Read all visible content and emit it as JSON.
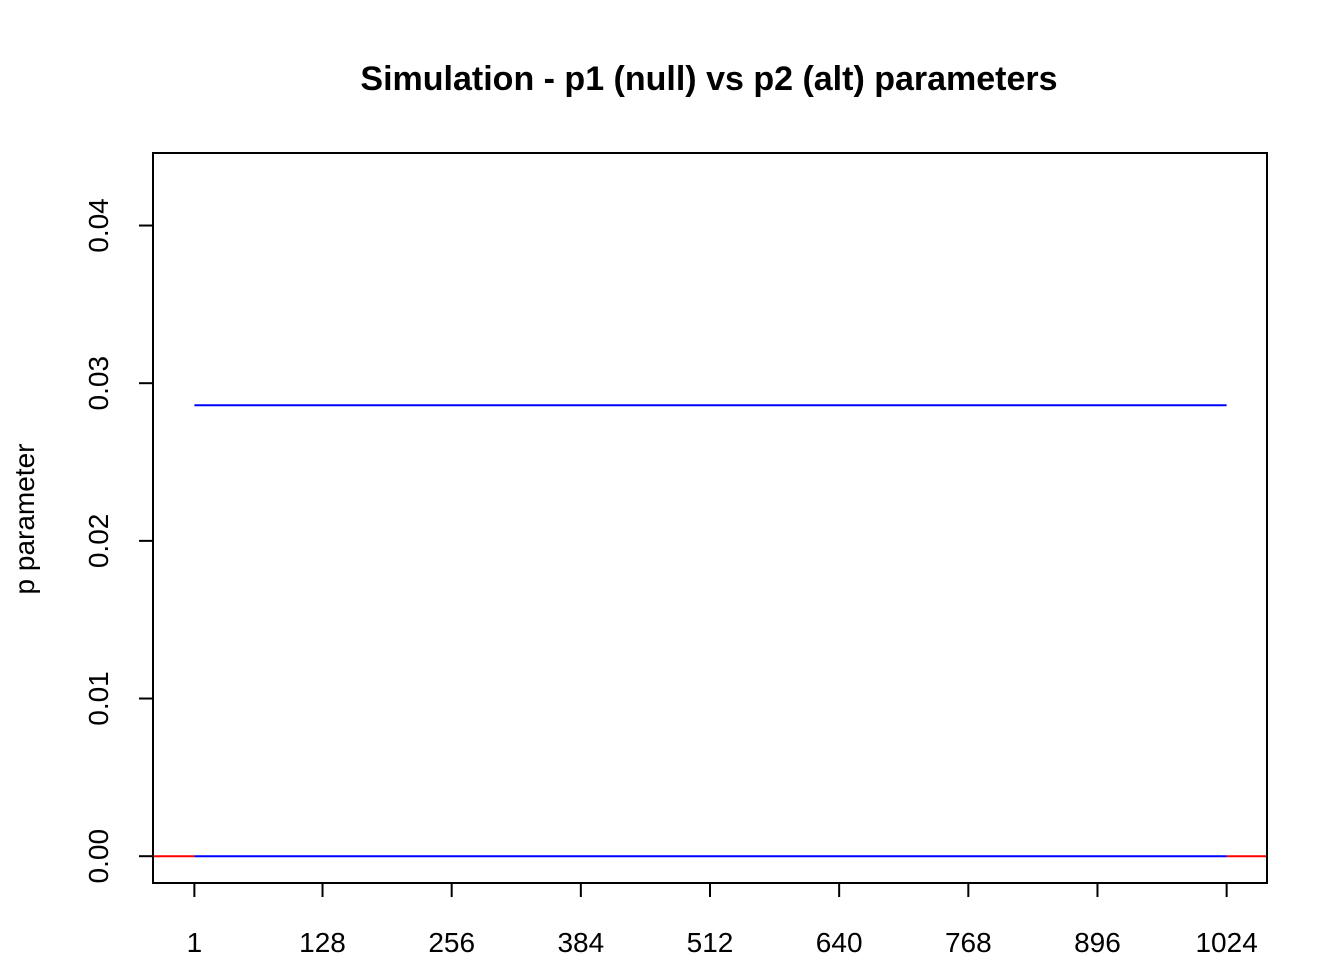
{
  "chart_data": {
    "type": "line",
    "title": "Simulation - p1 (null) vs p2 (alt) parameters",
    "xlabel": "",
    "ylabel": "p parameter",
    "xlim": [
      -40,
      1064
    ],
    "ylim": [
      -0.0017,
      0.0446
    ],
    "x_ticks": [
      1,
      128,
      256,
      384,
      512,
      640,
      768,
      896,
      1024
    ],
    "y_ticks": [
      0.0,
      0.01,
      0.02,
      0.03,
      0.04
    ],
    "y_tick_labels": [
      "0.00",
      "0.01",
      "0.02",
      "0.03",
      "0.04"
    ],
    "grid": false,
    "series": [
      {
        "color": "#ff0000",
        "segments": [
          {
            "x": [
              -40,
              1
            ],
            "y": [
              0.0,
              0.0
            ]
          },
          {
            "x": [
              1024,
              1064
            ],
            "y": [
              0.0,
              0.0
            ]
          }
        ]
      },
      {
        "color": "#0000ff",
        "segments": [
          {
            "x": [
              1,
              1024
            ],
            "y": [
              0.0286,
              0.0286
            ]
          },
          {
            "x": [
              1,
              1024
            ],
            "y": [
              0.0,
              0.0
            ]
          }
        ]
      }
    ]
  }
}
